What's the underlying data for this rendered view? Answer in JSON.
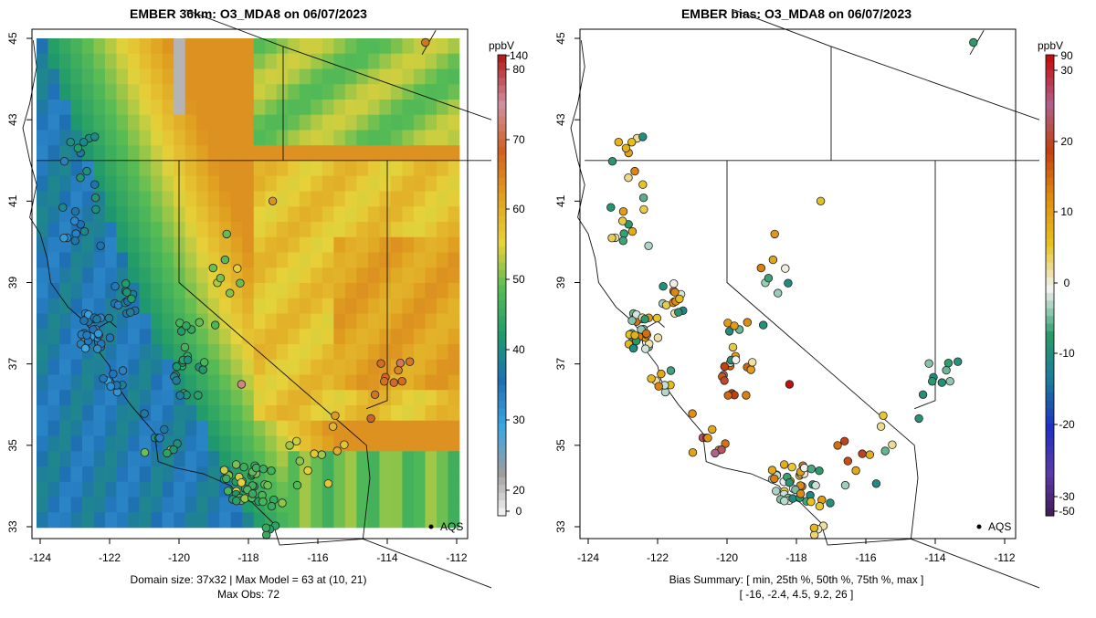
{
  "left_panel": {
    "title": "EMBER 36km: O3_MDA8 on 06/07/2023",
    "colorbar_unit": "ppbV",
    "colorbar_ticks": [
      "0",
      "20",
      "30",
      "40",
      "50",
      "60",
      "70",
      "80",
      "140"
    ],
    "footer_line1": "Domain size: 37x32 | Max Model = 63 at (10, 21)",
    "footer_line2": "Max Obs: 72",
    "aqs_label": "AQS"
  },
  "right_panel": {
    "title": "EMBER bias: O3_MDA8 on 06/07/2023",
    "colorbar_unit": "ppbV",
    "colorbar_ticks": [
      "-50",
      "-30",
      "-20",
      "-10",
      "0",
      "10",
      "20",
      "30",
      "90"
    ],
    "footer_line1": "Bias Summary: [ min, 25th %, 50th %, 75th %, max ]",
    "footer_line2": "[ -16,   -2.4,   4.5,   9.2,   26 ]",
    "aqs_label": "AQS"
  },
  "map": {
    "lon_range": [
      -124,
      -112
    ],
    "lat_range": [
      33,
      45
    ],
    "x_ticks": [
      "-124",
      "-122",
      "-120",
      "-118",
      "-116",
      "-114",
      "-112"
    ],
    "y_ticks": [
      "33",
      "35",
      "37",
      "39",
      "41",
      "43",
      "45"
    ]
  },
  "bias_summary": {
    "min": -16,
    "p25": -2.4,
    "p50": 4.5,
    "p75": 9.2,
    "max": 26
  },
  "model_max": {
    "value": 63,
    "i": 10,
    "j": 21
  },
  "obs_max": 72,
  "colors": {
    "conc_scale": [
      "#ffffff",
      "#9e9e9e",
      "#3ba7e0",
      "#1f6fb5",
      "#1f9a6a",
      "#55bb55",
      "#e6d23a",
      "#e0a020",
      "#d06020",
      "#d090a0",
      "#b02020"
    ],
    "bias_scale": [
      "#40184a",
      "#5a3aa8",
      "#2030c0",
      "#1a7a9a",
      "#2a9a6a",
      "#f2f2f2",
      "#e6c020",
      "#e08a10",
      "#c04010",
      "#b0608a",
      "#c01010"
    ]
  }
}
